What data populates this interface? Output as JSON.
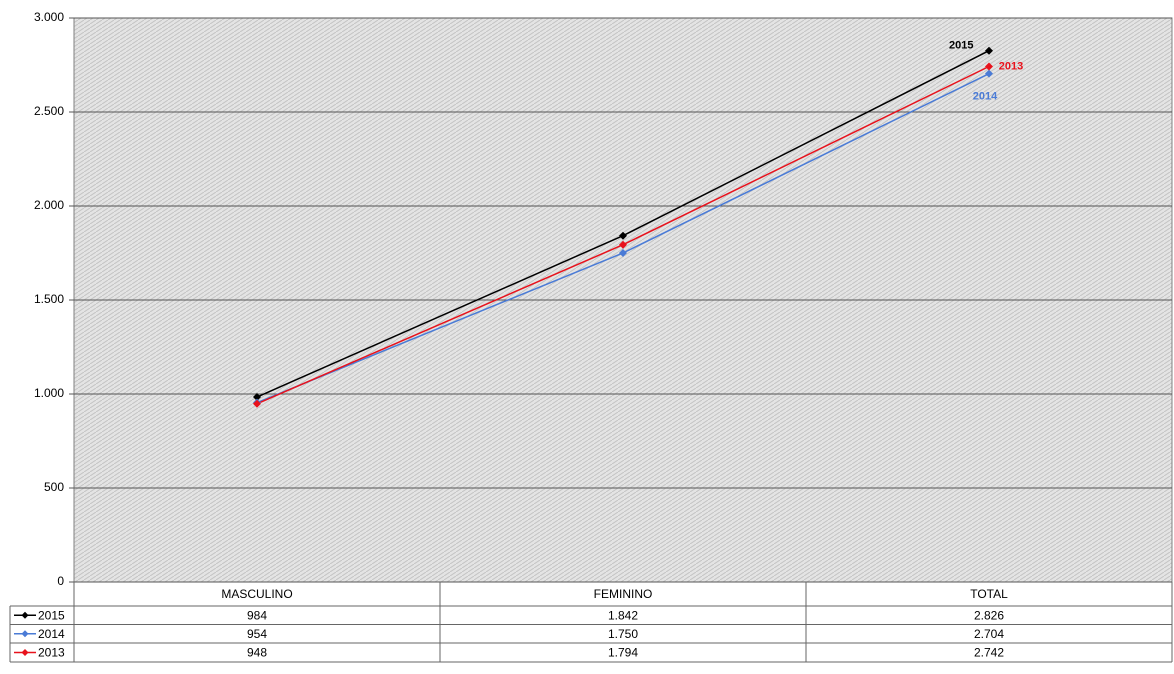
{
  "chart_data": {
    "type": "line",
    "categories": [
      "MASCULINO",
      "FEMININO",
      "TOTAL"
    ],
    "series": [
      {
        "name": "2015",
        "color": "#000000",
        "values": [
          984,
          1842,
          2826
        ],
        "value_labels": [
          "984",
          "1.842",
          "2.826"
        ]
      },
      {
        "name": "2014",
        "color": "#4a7bd6",
        "values": [
          954,
          1750,
          2704
        ],
        "value_labels": [
          "954",
          "1.750",
          "2.704"
        ]
      },
      {
        "name": "2013",
        "color": "#e8121c",
        "values": [
          948,
          1794,
          2742
        ],
        "value_labels": [
          "948",
          "1.794",
          "2.742"
        ]
      }
    ],
    "ylim": [
      0,
      3000
    ],
    "yticks": [
      0,
      500,
      {
        "value": 1000,
        "label": "1.000"
      },
      {
        "value": 1500,
        "label": "1.500"
      },
      {
        "value": 2000,
        "label": "2.000"
      },
      {
        "value": 2500,
        "label": "2.500"
      },
      {
        "value": 3000,
        "label": "3.000"
      }
    ],
    "grid": true,
    "data_table": true
  }
}
